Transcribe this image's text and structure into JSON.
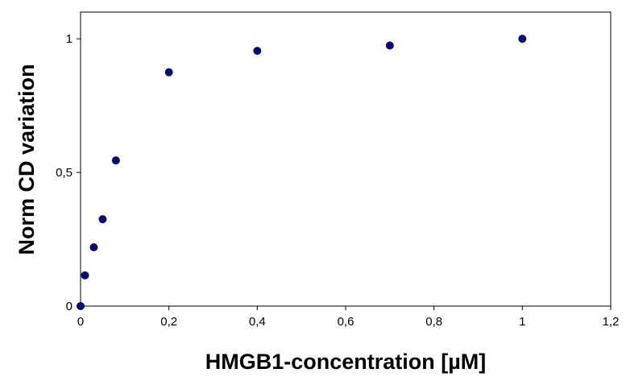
{
  "chart_data": {
    "type": "scatter",
    "title": "",
    "xlabel": "HMGB1-concentration [µM]",
    "ylabel": "Norm CD variation",
    "xlim": [
      0,
      1.2
    ],
    "ylim": [
      0,
      1.1
    ],
    "x_ticks": [
      0,
      0.2,
      0.4,
      0.6,
      0.8,
      1,
      1.2
    ],
    "x_tick_labels": [
      "0",
      "0,2",
      "0,4",
      "0,6",
      "0,8",
      "1",
      "1,2"
    ],
    "y_ticks": [
      0,
      0.5,
      1
    ],
    "y_tick_labels": [
      "0",
      "0,5",
      "1"
    ],
    "grid": false,
    "legend": "none",
    "marker_color": "#0a0a6e",
    "series": [
      {
        "x": [
          0,
          0.01,
          0.03,
          0.05,
          0.08,
          0.2,
          0.4,
          0.7,
          1.0
        ],
        "y": [
          0,
          0.115,
          0.22,
          0.325,
          0.545,
          0.875,
          0.955,
          0.975,
          1.0
        ]
      }
    ]
  }
}
